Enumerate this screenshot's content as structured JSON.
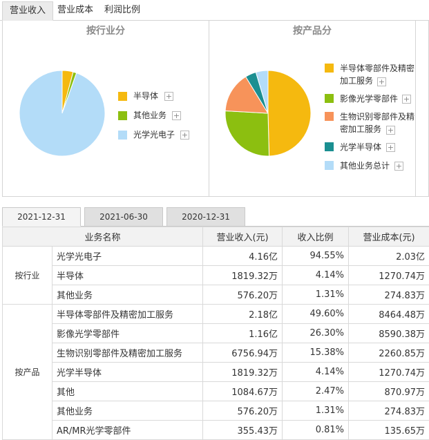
{
  "tabs": [
    "营业收入",
    "营业成本",
    "利润比例"
  ],
  "panels": {
    "industry": {
      "title": "按行业分",
      "chart_data": {
        "type": "pie",
        "labels": [
          "半导体",
          "其他业务",
          "光学光电子"
        ],
        "values": [
          4.14,
          1.31,
          94.55
        ],
        "colors": [
          "#f5b90f",
          "#8cbf10",
          "#b3dcf8"
        ]
      }
    },
    "product": {
      "title": "按产品分",
      "chart_data": {
        "type": "pie",
        "labels": [
          "半导体零部件及精密加工服务",
          "影像光学零部件",
          "生物识别零部件及精密加工服务",
          "光学半导体",
          "其他业务总计"
        ],
        "values": [
          49.6,
          26.3,
          15.38,
          4.14,
          4.59
        ],
        "colors": [
          "#f5b90f",
          "#8cbf10",
          "#f7935a",
          "#1b8f91",
          "#b3dcf8"
        ]
      }
    }
  },
  "legend_product": [
    [
      "半导体零部件及精密",
      "加工服务"
    ],
    [
      "影像光学零部件"
    ],
    [
      "生物识别零部件及精",
      "密加工服务"
    ],
    [
      "光学半导体"
    ],
    [
      "其他业务总计"
    ]
  ],
  "plus_symbol": "+",
  "date_tabs": [
    "2021-12-31",
    "2021-06-30",
    "2020-12-31"
  ],
  "table": {
    "headers": [
      "业务名称",
      "营业收入(元)",
      "收入比例",
      "营业成本(元)"
    ],
    "groups": [
      "按行业",
      "按产品"
    ],
    "rows": [
      [
        "光学光电子",
        "4.16亿",
        "94.55%",
        "2.03亿"
      ],
      [
        "半导体",
        "1819.32万",
        "4.14%",
        "1270.74万"
      ],
      [
        "其他业务",
        "576.20万",
        "1.31%",
        "274.83万"
      ],
      [
        "半导体零部件及精密加工服务",
        "2.18亿",
        "49.60%",
        "8464.48万"
      ],
      [
        "影像光学零部件",
        "1.16亿",
        "26.30%",
        "8590.38万"
      ],
      [
        "生物识别零部件及精密加工服务",
        "6756.94万",
        "15.38%",
        "2260.85万"
      ],
      [
        "光学半导体",
        "1819.32万",
        "4.14%",
        "1270.74万"
      ],
      [
        "其他",
        "1084.67万",
        "2.47%",
        "870.97万"
      ],
      [
        "其他业务",
        "576.20万",
        "1.31%",
        "274.83万"
      ],
      [
        "AR/MR光学零部件",
        "355.43万",
        "0.81%",
        "135.65万"
      ]
    ]
  }
}
